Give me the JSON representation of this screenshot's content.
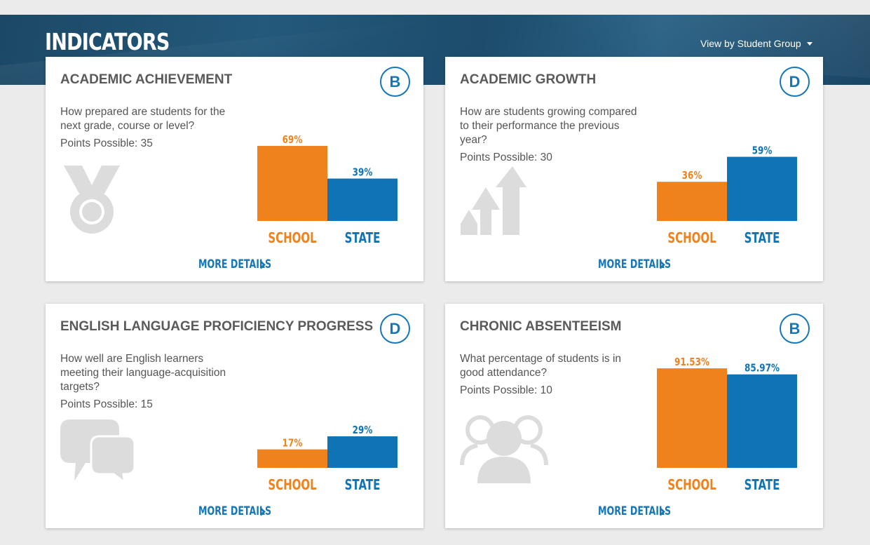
{
  "header": {
    "title": "INDICATORS",
    "view_by_label": "View by Student Group"
  },
  "colors": {
    "school": "#f0821e",
    "state": "#0f73b6",
    "grade": "#1577b8"
  },
  "cards": [
    {
      "title": "ACADEMIC ACHIEVEMENT",
      "grade": "B",
      "question": "How prepared are students for the next grade, course or level?",
      "points": "Points Possible: 35",
      "icon": "medal-icon",
      "more_label": "MORE DETAILS"
    },
    {
      "title": "ACADEMIC GROWTH",
      "grade": "D",
      "question": "How are students growing compared to their performance the previous year?",
      "points": "Points Possible: 30",
      "icon": "growth-arrows-icon",
      "more_label": "MORE DETAILS"
    },
    {
      "title": "ENGLISH LANGUAGE PROFICIENCY PROGRESS",
      "grade": "D",
      "question": "How well are English learners meeting their language-acquisition targets?",
      "points": "Points Possible: 15",
      "icon": "speech-bubbles-icon",
      "more_label": "MORE DETAILS"
    },
    {
      "title": "CHRONIC ABSENTEEISM",
      "grade": "B",
      "question": "What percentage of students is in good attendance?",
      "points": "Points Possible: 10",
      "icon": "people-group-icon",
      "more_label": "MORE DETAILS"
    }
  ],
  "chart_data": [
    {
      "type": "bar",
      "title": "ACADEMIC ACHIEVEMENT",
      "categories": [
        "SCHOOL",
        "STATE"
      ],
      "values": [
        69,
        39
      ],
      "labels": [
        "69%",
        "39%"
      ]
    },
    {
      "type": "bar",
      "title": "ACADEMIC GROWTH",
      "categories": [
        "SCHOOL",
        "STATE"
      ],
      "values": [
        36,
        59
      ],
      "labels": [
        "36%",
        "59%"
      ]
    },
    {
      "type": "bar",
      "title": "ENGLISH LANGUAGE PROFICIENCY PROGRESS",
      "categories": [
        "SCHOOL",
        "STATE"
      ],
      "values": [
        17,
        29
      ],
      "labels": [
        "17%",
        "29%"
      ]
    },
    {
      "type": "bar",
      "title": "CHRONIC ABSENTEEISM",
      "categories": [
        "SCHOOL",
        "STATE"
      ],
      "values": [
        91.53,
        85.97
      ],
      "labels": [
        "91.53%",
        "85.97%"
      ]
    }
  ]
}
